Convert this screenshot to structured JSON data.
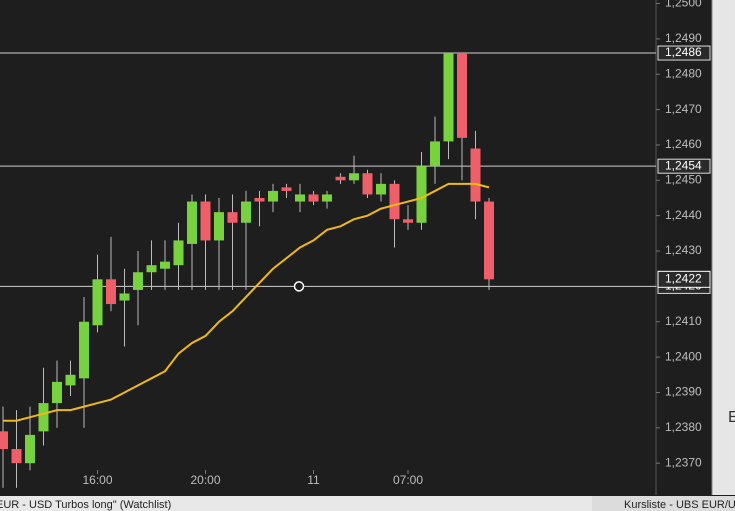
{
  "chart_data": {
    "type": "candlestick",
    "categories": [
      null,
      null,
      null,
      null,
      null,
      null,
      null,
      "16:00",
      null,
      null,
      null,
      null,
      null,
      null,
      null,
      "20:00",
      null,
      null,
      null,
      null,
      null,
      null,
      null,
      "11",
      null,
      null,
      null,
      null,
      null,
      null,
      "07:00",
      null,
      null,
      null,
      null,
      null,
      null
    ],
    "open": [
      1.2379,
      1.2374,
      1.237,
      1.2379,
      1.2387,
      1.2392,
      1.2394,
      1.2409,
      1.2422,
      1.2416,
      1.2419,
      1.2424,
      1.2425,
      1.2426,
      1.2432,
      1.2444,
      1.2433,
      1.2441,
      1.2438,
      1.2445,
      1.2444,
      1.2448,
      1.2444,
      1.2446,
      1.2444,
      1.2451,
      1.245,
      1.2452,
      1.2446,
      1.2449,
      1.2439,
      1.2438,
      1.2454,
      1.2461,
      1.2486,
      1.2459,
      1.2444
    ],
    "high": [
      1.2386,
      1.2385,
      1.2386,
      1.2397,
      1.2399,
      1.2399,
      1.2417,
      1.2429,
      1.2434,
      1.2425,
      1.243,
      1.2433,
      1.2433,
      1.2438,
      1.2446,
      1.2446,
      1.2445,
      1.2446,
      1.2447,
      1.2447,
      1.2449,
      1.2449,
      1.2449,
      1.2447,
      1.2447,
      1.2452,
      1.2457,
      1.2453,
      1.2452,
      1.245,
      1.2443,
      1.2458,
      1.2468,
      1.2486,
      1.2486,
      1.2464,
      1.2445
    ],
    "low": [
      1.2363,
      1.2363,
      1.2368,
      1.2375,
      1.238,
      1.2389,
      1.238,
      1.2407,
      1.2413,
      1.2403,
      1.2409,
      1.2419,
      1.2419,
      1.2419,
      1.2419,
      1.2419,
      1.2419,
      1.2419,
      1.2419,
      1.2437,
      1.2441,
      1.2445,
      1.2441,
      1.2443,
      1.2442,
      1.2449,
      1.2449,
      1.2445,
      1.2444,
      1.2431,
      1.2436,
      1.2436,
      1.2449,
      1.2456,
      1.245,
      1.2439,
      1.2419
    ],
    "close": [
      1.2374,
      1.237,
      1.2378,
      1.2387,
      1.2393,
      1.2395,
      1.241,
      1.2422,
      1.2415,
      1.2418,
      1.2424,
      1.2426,
      1.2427,
      1.2433,
      1.2444,
      1.2433,
      1.2441,
      1.2438,
      1.2444,
      1.2444,
      1.2447,
      1.2447,
      1.2446,
      1.2444,
      1.2446,
      1.245,
      1.2452,
      1.2446,
      1.2449,
      1.2439,
      1.2438,
      1.2454,
      1.2461,
      1.2486,
      1.2462,
      1.2444,
      1.2422
    ],
    "ma": {
      "color": "#f2b90f",
      "values": [
        1.2382,
        1.2382,
        1.2383,
        1.2384,
        1.2385,
        1.2385,
        1.2386,
        1.2387,
        1.2388,
        1.239,
        1.2392,
        1.2394,
        1.2396,
        1.2401,
        1.2404,
        1.2406,
        1.241,
        1.2413,
        1.2417,
        1.2421,
        1.2425,
        1.2428,
        1.2431,
        1.2433,
        1.2436,
        1.2437,
        1.2439,
        1.244,
        1.2442,
        1.2443,
        1.2444,
        1.2445,
        1.2447,
        1.2449,
        1.2449,
        1.2449,
        1.2448
      ]
    },
    "up_color": "#78d13f",
    "down_color": "#ef5f69",
    "ylim": [
      1.2361,
      1.2501
    ],
    "yticks": [
      {
        "value": 1.25,
        "label": "1,2500"
      },
      {
        "value": 1.249,
        "label": "1,2490"
      },
      {
        "value": 1.248,
        "label": "1,2480"
      },
      {
        "value": 1.247,
        "label": "1,2470"
      },
      {
        "value": 1.246,
        "label": "1,2460"
      },
      {
        "value": 1.245,
        "label": "1,2450"
      },
      {
        "value": 1.244,
        "label": "1,2440"
      },
      {
        "value": 1.243,
        "label": "1,2430"
      },
      {
        "value": 1.242,
        "label": "1,2420"
      },
      {
        "value": 1.241,
        "label": "1,2410"
      },
      {
        "value": 1.24,
        "label": "1,2400"
      },
      {
        "value": 1.239,
        "label": "1,2390"
      },
      {
        "value": 1.238,
        "label": "1,2380"
      },
      {
        "value": 1.237,
        "label": "1,2370"
      }
    ],
    "levels": [
      {
        "value": 1.2486,
        "label": "1,2486"
      },
      {
        "value": 1.2454,
        "label": "1,2454"
      },
      {
        "value": 1.242,
        "label": "1,2420"
      }
    ],
    "last_price": {
      "value": 1.2422,
      "label": "1,2422"
    }
  },
  "tabs": [
    "EUR - USD Turbos long\" (Watchlist)",
    "Kursliste - UBS EUR/US"
  ],
  "side_panel": "E"
}
